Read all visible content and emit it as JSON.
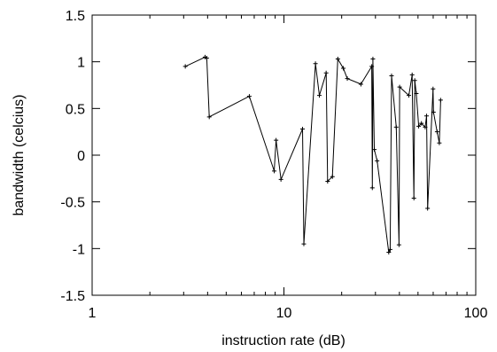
{
  "chart_data": {
    "type": "line",
    "title": "",
    "xlabel": "instruction rate (dB)",
    "ylabel": "bandwidth (celcius)",
    "xscale": "log",
    "xlim": [
      1,
      100
    ],
    "ylim": [
      -1.5,
      1.5
    ],
    "xticks": [
      1,
      10,
      100
    ],
    "xtick_labels": [
      "1",
      "10",
      "100"
    ],
    "yticks": [
      -1.5,
      -1,
      -0.5,
      0,
      0.5,
      1,
      1.5
    ],
    "ytick_labels": [
      "-1.5",
      "-1",
      "-0.5",
      "0",
      "0.5",
      "1",
      "1.5"
    ],
    "grid": false,
    "legend": "none",
    "series": [
      {
        "color": "#000000",
        "marker": "plus",
        "x": [
          3.06,
          3.88,
          3.96,
          4.08,
          6.6,
          8.9,
          9.1,
          9.65,
          12.5,
          12.7,
          14.6,
          15.3,
          16.6,
          16.9,
          17.9,
          19.1,
          20.4,
          21.4,
          25.2,
          28.7,
          28.9,
          29.1,
          29.6,
          30.6,
          35.2,
          35.8,
          36.4,
          38.5,
          39.8,
          40.1,
          44.8,
          46.6,
          47.6,
          48.1,
          49.0,
          50.4,
          52.1,
          54.5,
          55.4,
          56.1,
          59.9,
          60.2,
          62.9,
          64.6,
          65.6
        ],
        "y": [
          0.95,
          1.05,
          1.04,
          0.41,
          0.63,
          -0.17,
          0.16,
          -0.26,
          0.28,
          -0.95,
          0.98,
          0.64,
          0.88,
          -0.28,
          -0.23,
          1.03,
          0.93,
          0.82,
          0.76,
          0.95,
          -0.35,
          1.03,
          0.06,
          -0.06,
          -1.04,
          -1.01,
          0.85,
          0.3,
          -0.96,
          0.73,
          0.64,
          0.86,
          -0.46,
          0.8,
          0.66,
          0.31,
          0.34,
          0.3,
          0.42,
          -0.57,
          0.71,
          0.46,
          0.25,
          0.13,
          0.59
        ]
      }
    ]
  }
}
